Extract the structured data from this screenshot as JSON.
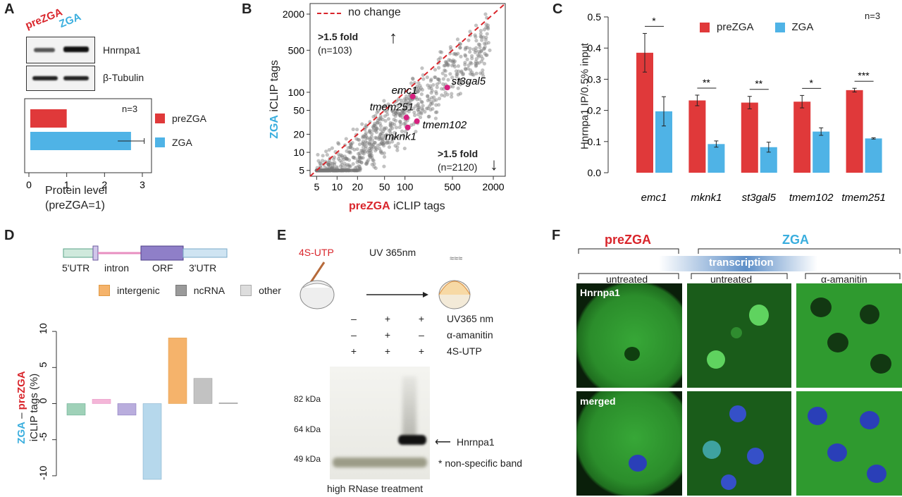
{
  "panels": {
    "A": "A",
    "B": "B",
    "C": "C",
    "D": "D",
    "E": "E",
    "F": "F"
  },
  "colors": {
    "preZGA": "#e0393a",
    "ZGA": "#4fb3e6",
    "red_text": "#d9252b",
    "blue_text": "#2aa8dc"
  },
  "panelA": {
    "lane_labels": [
      "preZGA",
      "ZGA"
    ],
    "blot_labels": [
      "Hnrnpa1",
      "β-Tubulin"
    ],
    "n": "n=3",
    "legend": [
      "preZGA",
      "ZGA"
    ],
    "xlabel_line1": "Protein level",
    "xlabel_line2": "(preZGA=1)",
    "ticks": [
      "0",
      "1",
      "2",
      "3"
    ]
  },
  "panelB": {
    "legend": "no change",
    "up_label": ">1.5 fold",
    "up_n": "(n=103)",
    "down_label": ">1.5 fold",
    "down_n": "(n=2120)",
    "ylabel_colored": "ZGA",
    "ylabel_rest": " iCLIP tags",
    "xlabel_colored": "preZGA",
    "xlabel_rest": " iCLIP tags",
    "x_ticks": [
      "5",
      "10",
      "20",
      "50",
      "100",
      "500",
      "2000"
    ],
    "y_ticks": [
      "5",
      "10",
      "20",
      "50",
      "100",
      "500",
      "2000"
    ],
    "gene_labels": [
      "emc1",
      "st3gal5",
      "tmem251",
      "tmem102",
      "mknk1"
    ]
  },
  "panelC": {
    "n": "n=3",
    "ylabel": "Hnrnpa1 IP/0.5% input",
    "y_ticks": [
      "0.0",
      "0.1",
      "0.2",
      "0.3",
      "0.4",
      "0.5"
    ],
    "legend": [
      "preZGA",
      "ZGA"
    ],
    "significance": [
      "*",
      "**",
      "**",
      "*",
      "***"
    ]
  },
  "panelD": {
    "gene_parts": [
      "5'UTR",
      "intron",
      "ORF",
      "3'UTR"
    ],
    "legend": [
      "intergenic",
      "ncRNA",
      "other"
    ],
    "ylabel_zga": "ZGA",
    "ylabel_minus": " – ",
    "ylabel_prezga": "preZGA",
    "ylabel_line2": "iCLIP tags (%)",
    "y_ticks": [
      "10",
      "5",
      "0",
      "-5",
      "-10"
    ]
  },
  "panelE": {
    "reagent": "4S-UTP",
    "uv_label": "UV 365nm",
    "rows": [
      {
        "label": "UV365 nm",
        "signs": [
          "–",
          "+",
          "+"
        ]
      },
      {
        "label": "α-amanitin",
        "signs": [
          "–",
          "+",
          "–"
        ]
      },
      {
        "label": "4S-UTP",
        "signs": [
          "+",
          "+",
          "+"
        ]
      }
    ],
    "markers": [
      "82 kDa",
      "64 kDa",
      "49 kDa"
    ],
    "band_label": "Hnrnpa1",
    "nonspecific": "* non-specific band",
    "caption": "high RNase treatment"
  },
  "panelF": {
    "group_prezga": "preZGA",
    "group_zga": "ZGA",
    "transcription": "transcription",
    "cols": [
      "untreated",
      "untreated",
      "α-amanitin"
    ],
    "row_labels": [
      "Hnrnpa1",
      "merged"
    ]
  },
  "chart_data": [
    {
      "type": "bar",
      "title": "",
      "categories": [
        "preZGA",
        "ZGA"
      ],
      "values": [
        1.0,
        2.7
      ],
      "errors": [
        0,
        0.35
      ],
      "xlabel": "Protein level (preZGA=1)",
      "xlim": [
        0,
        3
      ]
    },
    {
      "type": "scatter",
      "xlabel": "preZGA iCLIP tags",
      "ylabel": "ZGA iCLIP tags",
      "scale": "log",
      "xlim": [
        4,
        3000
      ],
      "ylim": [
        4,
        3000
      ],
      "reference_line": "no change",
      "highlighted": [
        {
          "name": "emc1",
          "x": 130,
          "y": 85
        },
        {
          "name": "st3gal5",
          "x": 420,
          "y": 120
        },
        {
          "name": "tmem251",
          "x": 105,
          "y": 38
        },
        {
          "name": "tmem102",
          "x": 150,
          "y": 33
        },
        {
          "name": "mknk1",
          "x": 110,
          "y": 26
        }
      ]
    },
    {
      "type": "bar",
      "categories": [
        "emc1",
        "mknk1",
        "st3gal5",
        "tmem102",
        "tmem251"
      ],
      "series": [
        {
          "name": "preZGA",
          "values": [
            0.385,
            0.232,
            0.225,
            0.228,
            0.265
          ],
          "errors": [
            0.062,
            0.017,
            0.02,
            0.02,
            0.006
          ]
        },
        {
          "name": "ZGA",
          "values": [
            0.197,
            0.092,
            0.082,
            0.132,
            0.11
          ],
          "errors": [
            0.047,
            0.01,
            0.016,
            0.012,
            0.002
          ]
        }
      ],
      "ylabel": "Hnrnpa1 IP/0.5% input",
      "ylim": [
        0,
        0.5
      ],
      "grid": false
    },
    {
      "type": "bar",
      "categories": [
        "5'UTR",
        "intron",
        "ORF",
        "3'UTR",
        "intergenic",
        "ncRNA",
        "other"
      ],
      "values": [
        -1.6,
        0.6,
        -1.6,
        -10.5,
        9.1,
        3.5,
        0.1
      ],
      "ylabel": "ZGA – preZGA iCLIP tags (%)",
      "ylim": [
        -10.5,
        10.5
      ]
    }
  ]
}
